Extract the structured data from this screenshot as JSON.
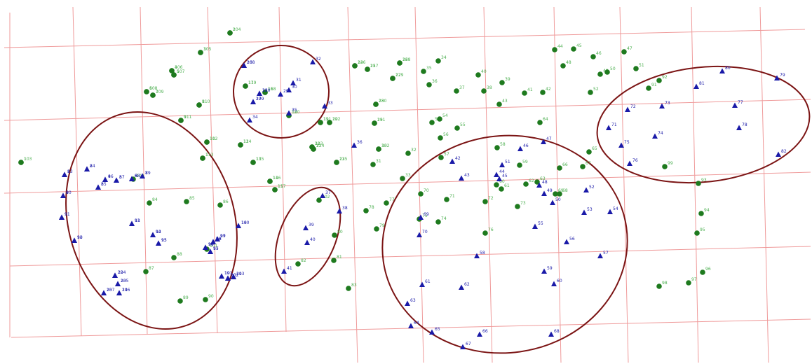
{
  "colors": {
    "grid": "#ef9a9a",
    "ellipse": "#7b1414",
    "tree": "#1e7a1e",
    "plot": "#1a1aa8",
    "label_tree": "#4caf50",
    "label_plot": "#1a1aa8"
  },
  "legend": {
    "tree_symbol": "circle-icon",
    "plot_symbol": "triangle-icon"
  },
  "points": [
    {
      "type": "tree",
      "label": "1"
    },
    {
      "type": "tree",
      "label": "2"
    },
    {
      "type": "tree",
      "label": "3"
    },
    {
      "type": "tree",
      "label": "4"
    },
    {
      "type": "tree",
      "label": "5"
    },
    {
      "type": "tree",
      "label": "6"
    },
    {
      "type": "tree",
      "label": "7"
    },
    {
      "type": "tree",
      "label": "8"
    },
    {
      "type": "tree",
      "label": "9"
    },
    {
      "type": "tree",
      "label": "10"
    },
    {
      "type": "tree",
      "label": "11"
    },
    {
      "type": "tree",
      "label": "12"
    },
    {
      "type": "tree",
      "label": "13"
    },
    {
      "type": "tree",
      "label": "14"
    },
    {
      "type": "tree",
      "label": "15"
    },
    {
      "type": "tree",
      "label": "16"
    },
    {
      "type": "tree",
      "label": "17"
    },
    {
      "type": "tree",
      "label": "18"
    },
    {
      "type": "tree",
      "label": "19"
    },
    {
      "type": "tree",
      "label": "20"
    },
    {
      "type": "tree",
      "label": "21"
    },
    {
      "type": "tree",
      "label": "22"
    },
    {
      "type": "tree",
      "label": "23"
    },
    {
      "type": "tree",
      "label": "24"
    },
    {
      "type": "tree",
      "label": "25"
    },
    {
      "type": "tree",
      "label": "26"
    },
    {
      "type": "tree",
      "label": "27"
    },
    {
      "type": "tree",
      "label": "28"
    },
    {
      "type": "tree",
      "label": "29"
    },
    {
      "type": "tree",
      "label": "30"
    },
    {
      "type": "tree",
      "label": "31"
    },
    {
      "type": "tree",
      "label": "32"
    },
    {
      "type": "tree",
      "label": "33"
    },
    {
      "type": "tree",
      "label": "34"
    },
    {
      "type": "tree",
      "label": "35"
    },
    {
      "type": "tree",
      "label": "36"
    },
    {
      "type": "tree",
      "label": "37"
    },
    {
      "type": "tree",
      "label": "38"
    },
    {
      "type": "tree",
      "label": "39"
    },
    {
      "type": "tree",
      "label": "40"
    },
    {
      "type": "tree",
      "label": "41"
    },
    {
      "type": "tree",
      "label": "42"
    },
    {
      "type": "tree",
      "label": "43"
    },
    {
      "type": "tree",
      "label": "44"
    },
    {
      "type": "tree",
      "label": "45"
    },
    {
      "type": "tree",
      "label": "46"
    },
    {
      "type": "tree",
      "label": "47"
    },
    {
      "type": "tree",
      "label": "48"
    },
    {
      "type": "tree",
      "label": "49"
    },
    {
      "type": "tree",
      "label": "50"
    },
    {
      "type": "tree",
      "label": "51"
    },
    {
      "type": "tree",
      "label": "52"
    },
    {
      "type": "tree",
      "label": "53"
    },
    {
      "type": "tree",
      "label": "54"
    },
    {
      "type": "tree",
      "label": "55"
    },
    {
      "type": "tree",
      "label": "56"
    },
    {
      "type": "tree",
      "label": "57"
    },
    {
      "type": "tree",
      "label": "58"
    },
    {
      "type": "tree",
      "label": "59"
    },
    {
      "type": "tree",
      "label": "60"
    },
    {
      "type": "tree",
      "label": "61"
    },
    {
      "type": "tree",
      "label": "62"
    },
    {
      "type": "tree",
      "label": "63"
    },
    {
      "type": "tree",
      "label": "64"
    },
    {
      "type": "tree",
      "label": "65"
    },
    {
      "type": "tree",
      "label": "66"
    },
    {
      "type": "tree",
      "label": "67"
    },
    {
      "type": "tree",
      "label": "68"
    },
    {
      "type": "tree",
      "label": "69"
    },
    {
      "type": "tree",
      "label": "70"
    },
    {
      "type": "tree",
      "label": "71"
    },
    {
      "type": "tree",
      "label": "72"
    },
    {
      "type": "tree",
      "label": "73"
    },
    {
      "type": "tree",
      "label": "74"
    },
    {
      "type": "tree",
      "label": "75"
    },
    {
      "type": "tree",
      "label": "76"
    },
    {
      "type": "tree",
      "label": "77"
    },
    {
      "type": "tree",
      "label": "78"
    },
    {
      "type": "tree",
      "label": "79"
    },
    {
      "type": "tree",
      "label": "80"
    },
    {
      "type": "tree",
      "label": "81"
    },
    {
      "type": "tree",
      "label": "82"
    },
    {
      "type": "tree",
      "label": "83"
    },
    {
      "type": "tree",
      "label": "84"
    },
    {
      "type": "tree",
      "label": "85"
    },
    {
      "type": "tree",
      "label": "86"
    },
    {
      "type": "tree",
      "label": "87"
    },
    {
      "type": "tree",
      "label": "88"
    },
    {
      "type": "tree",
      "label": "89"
    },
    {
      "type": "tree",
      "label": "90"
    },
    {
      "type": "tree",
      "label": "91"
    },
    {
      "type": "tree",
      "label": "92"
    },
    {
      "type": "tree",
      "label": "93"
    },
    {
      "type": "tree",
      "label": "94"
    },
    {
      "type": "tree",
      "label": "95"
    },
    {
      "type": "tree",
      "label": "96"
    },
    {
      "type": "tree",
      "label": "97"
    },
    {
      "type": "tree",
      "label": "98"
    },
    {
      "type": "tree",
      "label": "99"
    },
    {
      "type": "tree",
      "label": "100"
    },
    {
      "type": "tree",
      "label": "101"
    },
    {
      "type": "tree",
      "label": "102"
    },
    {
      "type": "tree",
      "label": "103"
    },
    {
      "type": "tree",
      "label": "104"
    },
    {
      "type": "tree",
      "label": "105"
    },
    {
      "type": "tree",
      "label": "106"
    },
    {
      "type": "tree",
      "label": "107"
    },
    {
      "type": "tree",
      "label": "108"
    },
    {
      "type": "tree",
      "label": "109"
    },
    {
      "type": "tree",
      "label": "110"
    },
    {
      "type": "tree",
      "label": "111"
    },
    {
      "type": "tree",
      "label": "112"
    },
    {
      "type": "tree",
      "label": "113"
    },
    {
      "type": "tree",
      "label": "114"
    },
    {
      "type": "tree",
      "label": "115"
    },
    {
      "type": "tree",
      "label": "116"
    },
    {
      "type": "tree",
      "label": "117"
    },
    {
      "type": "tree",
      "label": "118"
    },
    {
      "type": "tree",
      "label": "119"
    },
    {
      "type": "tree",
      "label": "120"
    },
    {
      "type": "tree",
      "label": "121"
    },
    {
      "type": "tree",
      "label": "122"
    },
    {
      "type": "tree",
      "label": "123"
    },
    {
      "type": "tree",
      "label": "124"
    },
    {
      "type": "tree",
      "label": "125"
    },
    {
      "type": "tree",
      "label": "126"
    },
    {
      "type": "tree",
      "label": "127"
    },
    {
      "type": "tree",
      "label": "128"
    },
    {
      "type": "tree",
      "label": "129"
    },
    {
      "type": "tree",
      "label": "130"
    },
    {
      "type": "tree",
      "label": "131"
    },
    {
      "type": "tree",
      "label": "132"
    },
    {
      "type": "plot",
      "label": "1"
    },
    {
      "type": "plot",
      "label": "2"
    },
    {
      "type": "plot",
      "label": "3"
    },
    {
      "type": "plot",
      "label": "4"
    },
    {
      "type": "plot",
      "label": "5"
    },
    {
      "type": "plot",
      "label": "6"
    },
    {
      "type": "plot",
      "label": "7"
    },
    {
      "type": "plot",
      "label": "8"
    },
    {
      "type": "plot",
      "label": "9"
    },
    {
      "type": "plot",
      "label": "10"
    },
    {
      "type": "plot",
      "label": "11"
    },
    {
      "type": "plot",
      "label": "12"
    },
    {
      "type": "plot",
      "label": "13"
    },
    {
      "type": "plot",
      "label": "14"
    },
    {
      "type": "plot",
      "label": "15"
    },
    {
      "type": "plot",
      "label": "16"
    },
    {
      "type": "plot",
      "label": "17"
    },
    {
      "type": "plot",
      "label": "18"
    },
    {
      "type": "plot",
      "label": "19"
    },
    {
      "type": "plot",
      "label": "20"
    },
    {
      "type": "plot",
      "label": "21"
    },
    {
      "type": "plot",
      "label": "22"
    },
    {
      "type": "plot",
      "label": "23"
    },
    {
      "type": "plot",
      "label": "24"
    },
    {
      "type": "plot",
      "label": "25"
    },
    {
      "type": "plot",
      "label": "26"
    },
    {
      "type": "plot",
      "label": "27"
    },
    {
      "type": "plot",
      "label": "28"
    },
    {
      "type": "plot",
      "label": "29"
    },
    {
      "type": "plot",
      "label": "30"
    },
    {
      "type": "plot",
      "label": "31"
    },
    {
      "type": "plot",
      "label": "32"
    },
    {
      "type": "plot",
      "label": "33"
    },
    {
      "type": "plot",
      "label": "34"
    },
    {
      "type": "plot",
      "label": "35"
    },
    {
      "type": "plot",
      "label": "36"
    },
    {
      "type": "plot",
      "label": "37"
    },
    {
      "type": "plot",
      "label": "38"
    },
    {
      "type": "plot",
      "label": "39"
    },
    {
      "type": "plot",
      "label": "40"
    },
    {
      "type": "plot",
      "label": "41"
    },
    {
      "type": "plot",
      "label": "42"
    },
    {
      "type": "plot",
      "label": "43"
    },
    {
      "type": "plot",
      "label": "44"
    },
    {
      "type": "plot",
      "label": "45"
    },
    {
      "type": "plot",
      "label": "46"
    },
    {
      "type": "plot",
      "label": "47"
    },
    {
      "type": "plot",
      "label": "48"
    },
    {
      "type": "plot",
      "label": "49"
    },
    {
      "type": "plot",
      "label": "50"
    },
    {
      "type": "plot",
      "label": "51"
    },
    {
      "type": "plot",
      "label": "52"
    },
    {
      "type": "plot",
      "label": "53"
    },
    {
      "type": "plot",
      "label": "54"
    },
    {
      "type": "plot",
      "label": "55"
    },
    {
      "type": "plot",
      "label": "56"
    },
    {
      "type": "plot",
      "label": "57"
    },
    {
      "type": "plot",
      "label": "58"
    },
    {
      "type": "plot",
      "label": "59"
    },
    {
      "type": "plot",
      "label": "60"
    },
    {
      "type": "plot",
      "label": "61"
    },
    {
      "type": "plot",
      "label": "62"
    },
    {
      "type": "plot",
      "label": "63"
    },
    {
      "type": "plot",
      "label": "64"
    },
    {
      "type": "plot",
      "label": "65"
    },
    {
      "type": "plot",
      "label": "66"
    },
    {
      "type": "plot",
      "label": "67"
    },
    {
      "type": "plot",
      "label": "68"
    },
    {
      "type": "plot",
      "label": "69"
    },
    {
      "type": "plot",
      "label": "70"
    },
    {
      "type": "plot",
      "label": "71"
    },
    {
      "type": "plot",
      "label": "72"
    },
    {
      "type": "plot",
      "label": "73"
    },
    {
      "type": "plot",
      "label": "74"
    },
    {
      "type": "plot",
      "label": "75"
    },
    {
      "type": "plot",
      "label": "76"
    },
    {
      "type": "plot",
      "label": "77"
    },
    {
      "type": "plot",
      "label": "78"
    },
    {
      "type": "plot",
      "label": "79"
    },
    {
      "type": "plot",
      "label": "80"
    },
    {
      "type": "plot",
      "label": "81"
    },
    {
      "type": "plot",
      "label": "82"
    },
    {
      "type": "plot",
      "label": "83"
    },
    {
      "type": "plot",
      "label": "84"
    },
    {
      "type": "plot",
      "label": "85"
    },
    {
      "type": "plot",
      "label": "86"
    },
    {
      "type": "plot",
      "label": "87"
    },
    {
      "type": "plot",
      "label": "88"
    },
    {
      "type": "plot",
      "label": "89"
    },
    {
      "type": "plot",
      "label": "90"
    },
    {
      "type": "plot",
      "label": "91"
    },
    {
      "type": "plot",
      "label": "92"
    },
    {
      "type": "plot",
      "label": "93"
    },
    {
      "type": "plot",
      "label": "94"
    },
    {
      "type": "plot",
      "label": "95"
    },
    {
      "type": "plot",
      "label": "96"
    },
    {
      "type": "plot",
      "label": "97"
    },
    {
      "type": "plot",
      "label": "98"
    },
    {
      "type": "plot",
      "label": "99"
    },
    {
      "type": "plot",
      "label": "100"
    },
    {
      "type": "plot",
      "label": "101"
    },
    {
      "type": "plot",
      "label": "102"
    },
    {
      "type": "plot",
      "label": "103"
    },
    {
      "type": "plot",
      "label": "104"
    },
    {
      "type": "plot",
      "label": "105"
    },
    {
      "type": "plot",
      "label": "106"
    },
    {
      "type": "plot",
      "label": "107"
    },
    {
      "type": "plot",
      "label": "108"
    },
    {
      "type": "plot",
      "label": "109"
    },
    {
      "type": "plot",
      "label": "110"
    }
  ]
}
